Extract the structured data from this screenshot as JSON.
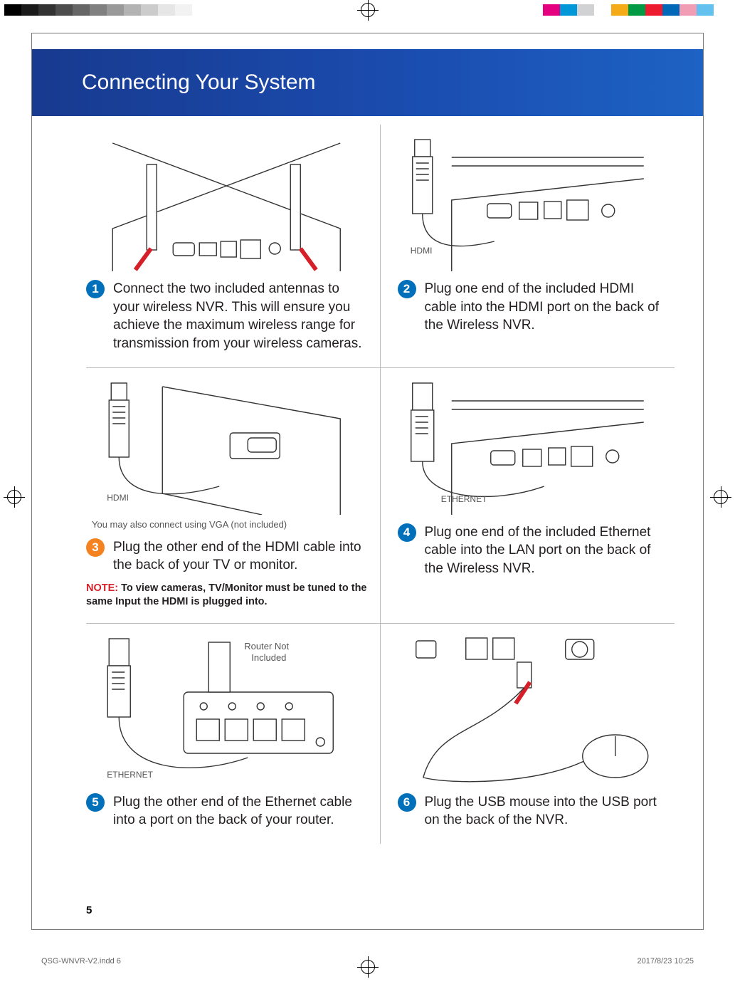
{
  "crop_grays": [
    "#000000",
    "#1a1a1a",
    "#333333",
    "#4d4d4d",
    "#666666",
    "#808080",
    "#999999",
    "#b3b3b3",
    "#cccccc",
    "#e6e6e6",
    "#f2f2f2",
    "#ffffff"
  ],
  "crop_colors": [
    "#ffffff",
    "#e4007f",
    "#0097d8",
    "#d0d2d3",
    "#ffffff",
    "#f5ab18",
    "#009944",
    "#ec1b2e",
    "#0068b7",
    "#f19db5",
    "#62c1ee",
    "#ffffff"
  ],
  "title": "Connecting Your System",
  "title_bg_from": "#183a8f",
  "title_bg_to": "#1d62c4",
  "title_fontsize": 30,
  "body_fontsize": 19,
  "label_color": "#58595b",
  "divider_color": "#bcbdc0",
  "badge_colors": {
    "s1": "#0070ba",
    "s2": "#0070ba",
    "s3": "#f58220",
    "s4": "#0070ba",
    "s5": "#0070ba",
    "s6": "#0070ba"
  },
  "steps": {
    "s1": {
      "num": "1",
      "text": "Connect the two included antennas to your wireless NVR. This will ensure you achieve the maximum wireless range for transmission from your wireless cameras."
    },
    "s2": {
      "num": "2",
      "text": "Plug one end of the included HDMI cable into the HDMI port on the back of the Wireless NVR.",
      "label": "HDMI"
    },
    "s3": {
      "num": "3",
      "text": "Plug the other end of the HDMI cable into the back of your TV or monitor.",
      "label": "HDMI",
      "sub": "You may also connect using VGA (not included)",
      "warn_prefix": "NOTE:",
      "warn_body": " To view cameras, TV/Monitor must be tuned to the same Input the HDMI is plugged into."
    },
    "s4": {
      "num": "4",
      "text": "Plug one end of the included Ethernet cable into the LAN port on the back of the Wireless NVR.",
      "label": "ETHERNET"
    },
    "s5": {
      "num": "5",
      "text": "Plug the other end of the Ethernet cable into a port on the back of your router.",
      "label": "ETHERNET",
      "router_note": "Router Not\nIncluded"
    },
    "s6": {
      "num": "6",
      "text": "Plug the USB mouse into the USB port on the back of the NVR."
    }
  },
  "page_number": "5",
  "footer": {
    "file": "QSG-WNVR-V2.indd   6",
    "date": "2017/8/23   10:25"
  }
}
